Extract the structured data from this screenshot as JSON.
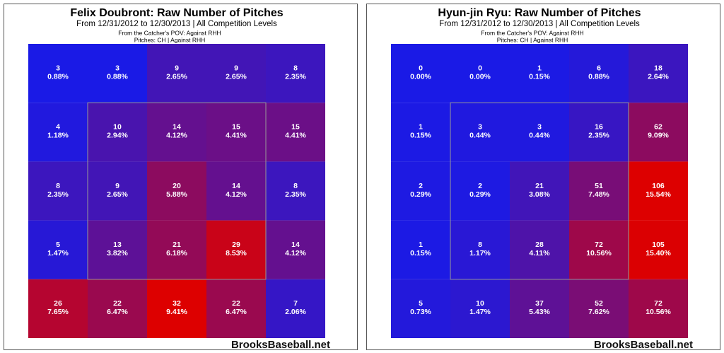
{
  "chart_data": [
    {
      "type": "heatmap",
      "title": "Felix Doubront: Raw Number of Pitches",
      "subtitle": "From 12/31/2012 to 12/30/2013 | All Competition Levels",
      "notes": [
        "From the Catcher's POV:  Against RHH",
        "Pitches:  CH  |  Against RHH"
      ],
      "watermark": "BrooksBaseball.net",
      "color_low": "#1a1ae6",
      "color_high": "#dd0000",
      "values": [
        [
          3,
          3,
          9,
          9,
          8
        ],
        [
          4,
          10,
          14,
          15,
          15
        ],
        [
          8,
          9,
          20,
          14,
          8
        ],
        [
          5,
          13,
          21,
          29,
          14
        ],
        [
          26,
          22,
          32,
          22,
          7
        ]
      ],
      "percents": [
        [
          0.88,
          0.88,
          2.65,
          2.65,
          2.35
        ],
        [
          1.18,
          2.94,
          4.12,
          4.41,
          4.41
        ],
        [
          2.35,
          2.65,
          5.88,
          4.12,
          2.35
        ],
        [
          1.47,
          3.82,
          6.18,
          8.53,
          4.12
        ],
        [
          7.65,
          6.47,
          9.41,
          6.47,
          2.06
        ]
      ],
      "percent_labels": [
        [
          "0.88%",
          "0.88%",
          "2.65%",
          "2.65%",
          "2.35%"
        ],
        [
          "1.18%",
          "2.94%",
          "4.12%",
          "4.41%",
          "4.41%"
        ],
        [
          "2.35%",
          "2.65%",
          "5.88%",
          "4.12%",
          "2.35%"
        ],
        [
          "1.47%",
          "3.82%",
          "6.18%",
          "8.53%",
          "4.12%"
        ],
        [
          "7.65%",
          "6.47%",
          "9.41%",
          "6.47%",
          "2.06%"
        ]
      ]
    },
    {
      "type": "heatmap",
      "title": "Hyun-jin Ryu: Raw Number of Pitches",
      "subtitle": "From 12/31/2012 to 12/30/2013 | All Competition Levels",
      "notes": [
        "From the Catcher's POV:  Against RHH",
        "Pitches:  CH  |  Against RHH"
      ],
      "watermark": "BrooksBaseball.net",
      "color_low": "#1a1ae6",
      "color_high": "#dd0000",
      "values": [
        [
          0,
          0,
          1,
          6,
          18
        ],
        [
          1,
          3,
          3,
          16,
          62
        ],
        [
          2,
          2,
          21,
          51,
          106
        ],
        [
          1,
          8,
          28,
          72,
          105
        ],
        [
          5,
          10,
          37,
          52,
          72
        ]
      ],
      "percents": [
        [
          0.0,
          0.0,
          0.15,
          0.88,
          2.64
        ],
        [
          0.15,
          0.44,
          0.44,
          2.35,
          9.09
        ],
        [
          0.29,
          0.29,
          3.08,
          7.48,
          15.54
        ],
        [
          0.15,
          1.17,
          4.11,
          10.56,
          15.4
        ],
        [
          0.73,
          1.47,
          5.43,
          7.62,
          10.56
        ]
      ],
      "percent_labels": [
        [
          "0.00%",
          "0.00%",
          "0.15%",
          "0.88%",
          "2.64%"
        ],
        [
          "0.15%",
          "0.44%",
          "0.44%",
          "2.35%",
          "9.09%"
        ],
        [
          "0.29%",
          "0.29%",
          "3.08%",
          "7.48%",
          "15.54%"
        ],
        [
          "0.15%",
          "1.17%",
          "4.11%",
          "10.56%",
          "15.40%"
        ],
        [
          "0.73%",
          "1.47%",
          "5.43%",
          "7.62%",
          "10.56%"
        ]
      ]
    }
  ]
}
